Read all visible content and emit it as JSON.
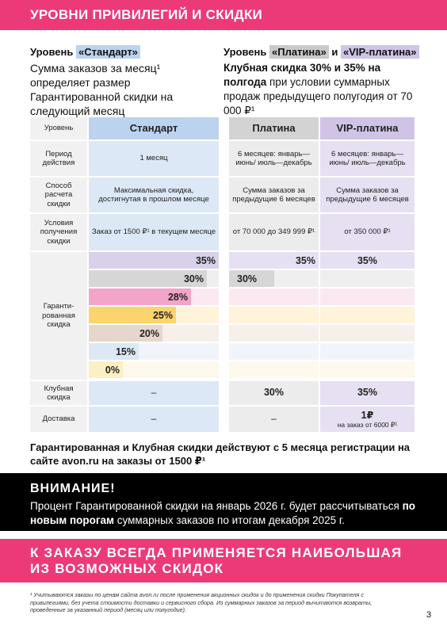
{
  "header": {
    "title": "УРОВНИ ПРИВИЛЕГИЙ И СКИДКИ"
  },
  "intro": {
    "standard": {
      "label": "Уровень",
      "badge": "«Стандарт»",
      "text": "Сумма заказов за месяц¹ определяет размер Гарантированной скидки на следующий месяц"
    },
    "premium": {
      "label": "Уровень",
      "badge1": "«Платина»",
      "connector": "и",
      "badge2": "«VIP-платина»",
      "bold_text": "Клубная скидка 30% и 35% на полгода",
      "text": "при условии суммарных продаж предыдущего полугодия от 70 000 ₽¹"
    }
  },
  "table": {
    "columns": [
      "Уровень",
      "Стандарт",
      "Платина",
      "VIP-платина"
    ],
    "rows": [
      {
        "label": "Период действия",
        "standard": "1 месяц",
        "platinum": "6 месяцев: январь—июнь/ июль—декабрь",
        "vip": "6 месяцев: январь—июнь/ июль—декабрь"
      },
      {
        "label": "Способ расчета скидки",
        "standard": "Максимальная скидка, достигнутая в прошлом месяце",
        "platinum": "Сумма заказов за предыдущие 6 месяцев",
        "vip": "Сумма заказов за предыдущие 6 месяцев"
      },
      {
        "label": "Условия получения скидки",
        "standard": "Заказ от 1500 ₽¹ в текущем месяце",
        "platinum": "от 70 000 до 349 999 ₽¹",
        "vip": "от 350 000 ₽¹"
      }
    ],
    "guaranteed": {
      "label": "Гаранти-рованная скидка",
      "standard": [
        "35%",
        "30%",
        "28%",
        "25%",
        "20%",
        "15%",
        "0%"
      ],
      "platinum": [
        "35%",
        "30%"
      ],
      "vip": [
        "35%"
      ]
    },
    "club": {
      "label": "Клубная скидка",
      "standard": "–",
      "platinum": "30%",
      "vip": "35%"
    },
    "delivery": {
      "label": "Доставка",
      "standard": "–",
      "platinum": "–",
      "vip": "1₽",
      "vip_note": "на заказ от 6000 ₽¹"
    }
  },
  "conditions": "Гарантированная и Клубная скидки действуют с 5 месяца регистрации на сайте avon.ru на заказы от 1500 ₽¹",
  "notice": {
    "title": "ВНИМАНИЕ!",
    "text_start": "Процент Гарантированной скидки на январь 2026 г. будет рассчитываться",
    "text_bold": "по новым порогам",
    "text_end": "суммарных заказов по итогам декабря 2025 г."
  },
  "banner": "К ЗАКАЗУ ВСЕГДА ПРИМЕНЯЕТСЯ НАИБОЛЬШАЯ ИЗ ВОЗМОЖНЫХ СКИДОК",
  "footnote": "¹ Учитываются заказы по ценам сайта avon.ru после применения акционных скидок и до применения скидки Покупателя с привилегиями, без учета стоимости доставки и сервисного сбора. Из суммарных заказов за период вычитаются возвраты, проведенные за указанный период (месяц или полугодие).",
  "page_number": "3"
}
